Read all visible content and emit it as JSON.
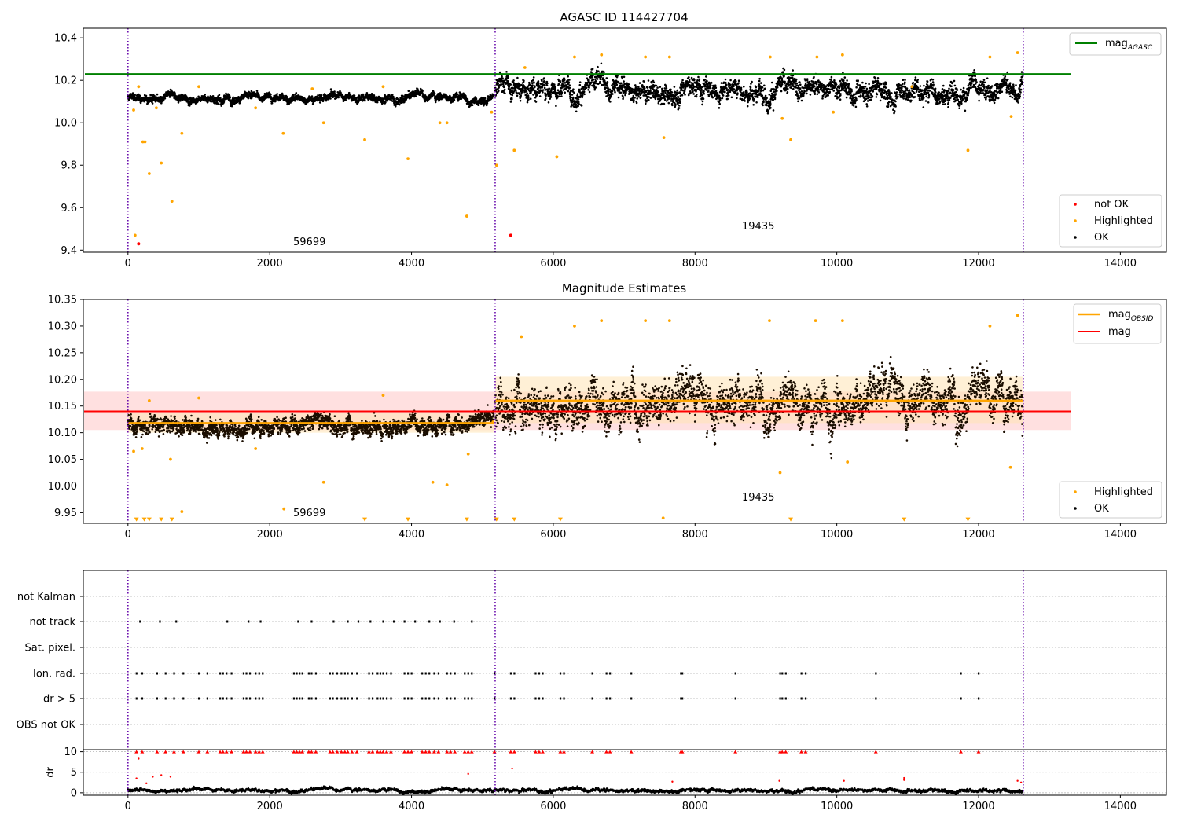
{
  "chart_data": [
    {
      "type": "scatter",
      "title": "AGASC ID 114427704",
      "xlim": [
        -630,
        14650
      ],
      "ylim": [
        9.39,
        10.445
      ],
      "x_ticks": [
        "0",
        "2000",
        "4000",
        "6000",
        "8000",
        "10000",
        "12000",
        "14000"
      ],
      "y_ticks": [
        "9.4",
        "9.6",
        "9.8",
        "10.0",
        "10.2",
        "10.4"
      ],
      "annotations": [
        "59699",
        "19435"
      ],
      "boundaries": [
        0,
        5180,
        12630
      ],
      "reference_line": {
        "name": "mag_AGASC",
        "y": 10.23,
        "x_range": [
          -630,
          13300
        ],
        "color": "#008000"
      },
      "legend_top": [
        {
          "label": "mag",
          "sub": "AGASC",
          "color": "#008000"
        }
      ],
      "legend_bottom": [
        {
          "label": "not OK",
          "color": "#ff0000"
        },
        {
          "label": "Highlighted",
          "color": "#ffa500"
        },
        {
          "label": "OK",
          "color": "#000000"
        }
      ],
      "series": [
        {
          "name": "OK",
          "segments": [
            {
              "x": [
                0,
                5160
              ],
              "y_center": 10.118,
              "y_spread": 0.04
            },
            {
              "x": [
                5180,
                12620
              ],
              "y_center": 10.16,
              "y_spread": 0.11
            }
          ]
        },
        {
          "name": "Highlighted",
          "points": [
            [
              80,
              10.06
            ],
            [
              100,
              9.47
            ],
            [
              150,
              10.17
            ],
            [
              210,
              9.91
            ],
            [
              240,
              9.91
            ],
            [
              300,
              9.76
            ],
            [
              400,
              10.07
            ],
            [
              470,
              9.81
            ],
            [
              620,
              9.63
            ],
            [
              760,
              9.95
            ],
            [
              1000,
              10.17
            ],
            [
              1800,
              10.07
            ],
            [
              2190,
              9.95
            ],
            [
              2600,
              10.16
            ],
            [
              2760,
              10.0
            ],
            [
              3340,
              9.92
            ],
            [
              3600,
              10.17
            ],
            [
              3950,
              9.83
            ],
            [
              4400,
              10.0
            ],
            [
              4500,
              10.0
            ],
            [
              4780,
              9.56
            ],
            [
              5130,
              10.05
            ],
            [
              5200,
              9.8
            ],
            [
              5450,
              9.87
            ],
            [
              5600,
              10.26
            ],
            [
              6050,
              9.84
            ],
            [
              6300,
              10.31
            ],
            [
              6680,
              10.32
            ],
            [
              7300,
              10.31
            ],
            [
              7560,
              9.93
            ],
            [
              7640,
              10.31
            ],
            [
              9060,
              10.31
            ],
            [
              9230,
              10.02
            ],
            [
              9350,
              9.92
            ],
            [
              9720,
              10.31
            ],
            [
              9950,
              10.05
            ],
            [
              10080,
              10.32
            ],
            [
              11060,
              10.17
            ],
            [
              11850,
              9.87
            ],
            [
              12160,
              10.31
            ],
            [
              12460,
              10.03
            ],
            [
              12550,
              10.33
            ]
          ]
        },
        {
          "name": "not OK",
          "points": [
            [
              150,
              9.43
            ],
            [
              5400,
              9.47
            ]
          ]
        }
      ]
    },
    {
      "type": "scatter",
      "title": "Magnitude Estimates",
      "xlim": [
        -630,
        14650
      ],
      "ylim": [
        9.93,
        10.35
      ],
      "x_ticks": [
        "0",
        "2000",
        "4000",
        "6000",
        "8000",
        "10000",
        "12000",
        "14000"
      ],
      "y_ticks": [
        "9.95",
        "10.00",
        "10.05",
        "10.10",
        "10.15",
        "10.20",
        "10.25",
        "10.30",
        "10.35"
      ],
      "annotations": [
        "59699",
        "19435"
      ],
      "boundaries": [
        0,
        5180,
        12630
      ],
      "mag_line": {
        "name": "mag",
        "y": 10.14,
        "band": [
          10.105,
          10.177
        ],
        "x_range": [
          -630,
          13300
        ],
        "color": "#ff0000"
      },
      "mag_obsid": {
        "name": "mag_OBSID",
        "color": "#ffa500",
        "segments": [
          {
            "x": [
              0,
              5160
            ],
            "y": 10.118,
            "band": [
              10.1,
              10.137
            ]
          },
          {
            "x": [
              5180,
              12620
            ],
            "y": 10.16,
            "band": [
              10.118,
              10.205
            ]
          }
        ]
      },
      "legend_top": [
        {
          "label": "mag",
          "sub": "OBSID",
          "color": "#ffa500"
        },
        {
          "label": "mag",
          "sub": "",
          "color": "#ff0000"
        }
      ],
      "legend_bottom": [
        {
          "label": "Highlighted",
          "color": "#ffa500"
        },
        {
          "label": "OK",
          "color": "#000000"
        }
      ],
      "series": [
        {
          "name": "OK",
          "segments": [
            {
              "x": [
                0,
                5160
              ],
              "y_center": 10.118,
              "y_spread": 0.035
            },
            {
              "x": [
                5180,
                12620
              ],
              "y_center": 10.16,
              "y_spread": 0.09
            }
          ]
        },
        {
          "name": "Highlighted",
          "points": [
            [
              80,
              10.065
            ],
            [
              200,
              10.07
            ],
            [
              300,
              10.16
            ],
            [
              600,
              10.05
            ],
            [
              760,
              9.952
            ],
            [
              1000,
              10.165
            ],
            [
              1800,
              10.07
            ],
            [
              2200,
              9.957
            ],
            [
              2760,
              10.007
            ],
            [
              3600,
              10.17
            ],
            [
              4300,
              10.007
            ],
            [
              4500,
              10.002
            ],
            [
              4800,
              10.06
            ],
            [
              5150,
              10.12
            ],
            [
              5550,
              10.28
            ],
            [
              6300,
              10.3
            ],
            [
              6680,
              10.31
            ],
            [
              7300,
              10.31
            ],
            [
              7550,
              9.94
            ],
            [
              7640,
              10.31
            ],
            [
              9050,
              10.31
            ],
            [
              9200,
              10.025
            ],
            [
              9700,
              10.31
            ],
            [
              10080,
              10.31
            ],
            [
              10150,
              10.045
            ],
            [
              12160,
              10.3
            ],
            [
              12450,
              10.035
            ],
            [
              12550,
              10.32
            ]
          ]
        },
        {
          "name": "Highlighted-below",
          "points": [
            [
              120,
              9.935
            ],
            [
              230,
              9.935
            ],
            [
              300,
              9.935
            ],
            [
              470,
              9.935
            ],
            [
              620,
              9.935
            ],
            [
              3340,
              9.935
            ],
            [
              3950,
              9.935
            ],
            [
              4780,
              9.935
            ],
            [
              5200,
              9.935
            ],
            [
              5450,
              9.935
            ],
            [
              6100,
              9.935
            ],
            [
              9350,
              9.935
            ],
            [
              10950,
              9.935
            ],
            [
              11850,
              9.935
            ]
          ]
        }
      ]
    },
    {
      "type": "scatter",
      "title": "",
      "xlim": [
        -630,
        14650
      ],
      "x_ticks": [
        "0",
        "2000",
        "4000",
        "6000",
        "8000",
        "10000",
        "12000",
        "14000"
      ],
      "boundaries": [
        0,
        5180,
        12630
      ],
      "categories": [
        "not Kalman",
        "not track",
        "Sat. pixel.",
        "Ion. rad.",
        "dr > 5",
        "OBS not OK"
      ],
      "flags": {
        "not track": [
          170,
          450,
          680,
          1400,
          1700,
          1870,
          2400,
          2590,
          2900,
          3100,
          3250,
          3420,
          3600,
          3750,
          3900,
          4050,
          4250,
          4400,
          4600,
          4850
        ],
        "Ion. rad.": [
          120,
          200,
          410,
          530,
          650,
          780,
          1000,
          1120,
          1300,
          1340,
          1390,
          1460,
          1630,
          1670,
          1720,
          1800,
          1850,
          1900,
          2340,
          2380,
          2420,
          2460,
          2550,
          2590,
          2650,
          2850,
          2890,
          2950,
          3010,
          3060,
          3100,
          3160,
          3230,
          3400,
          3450,
          3520,
          3560,
          3600,
          3650,
          3710,
          3900,
          3950,
          4000,
          4150,
          4200,
          4250,
          4320,
          4380,
          4500,
          4550,
          4610,
          4750,
          4800,
          4850,
          5170,
          5400,
          5450,
          5750,
          5800,
          5850,
          6100,
          6150,
          6550,
          6750,
          6800,
          7100,
          7800,
          7820,
          8570,
          9200,
          9230,
          9280,
          9500,
          9560,
          10550,
          11750,
          12000
        ],
        "dr > 5": [
          120,
          200,
          410,
          530,
          650,
          780,
          1000,
          1120,
          1300,
          1340,
          1390,
          1460,
          1630,
          1670,
          1720,
          1800,
          1850,
          1900,
          2340,
          2380,
          2420,
          2460,
          2550,
          2590,
          2650,
          2850,
          2890,
          2950,
          3010,
          3060,
          3100,
          3160,
          3230,
          3400,
          3450,
          3520,
          3560,
          3600,
          3650,
          3710,
          3900,
          3950,
          4000,
          4150,
          4200,
          4250,
          4320,
          4380,
          4500,
          4550,
          4610,
          4750,
          4800,
          4850,
          5170,
          5400,
          5450,
          5750,
          5800,
          5850,
          6100,
          6150,
          6550,
          6750,
          6800,
          7100,
          7800,
          7820,
          8570,
          9200,
          9230,
          9280,
          9500,
          9560,
          10550,
          11750,
          12000
        ]
      }
    },
    {
      "type": "scatter",
      "title": "",
      "ylabel": "dr",
      "xlim": [
        -630,
        14650
      ],
      "ylim": [
        -0.6,
        10.5
      ],
      "x_ticks": [
        "0",
        "2000",
        "4000",
        "6000",
        "8000",
        "10000",
        "12000",
        "14000"
      ],
      "y_ticks": [
        "0",
        "5",
        "10"
      ],
      "boundaries": [
        0,
        5180,
        12630
      ],
      "series": [
        {
          "name": "OK",
          "segment": {
            "x": [
              0,
              12620
            ],
            "y_center": 0.6,
            "y_spread": 0.9
          }
        },
        {
          "name": "not OK",
          "cap": 10,
          "points": [
            [
              120,
              3.5
            ],
            [
              150,
              8.3
            ],
            [
              260,
              2.3
            ],
            [
              350,
              3.9
            ],
            [
              470,
              4.3
            ],
            [
              600,
              3.9
            ],
            [
              4800,
              4.6
            ],
            [
              5420,
              5.9
            ],
            [
              7680,
              2.7
            ],
            [
              9190,
              2.9
            ],
            [
              10100,
              2.9
            ],
            [
              10950,
              3.1
            ],
            [
              10950,
              3.6
            ],
            [
              12550,
              2.9
            ],
            [
              12600,
              2.5
            ]
          ]
        }
      ]
    }
  ]
}
